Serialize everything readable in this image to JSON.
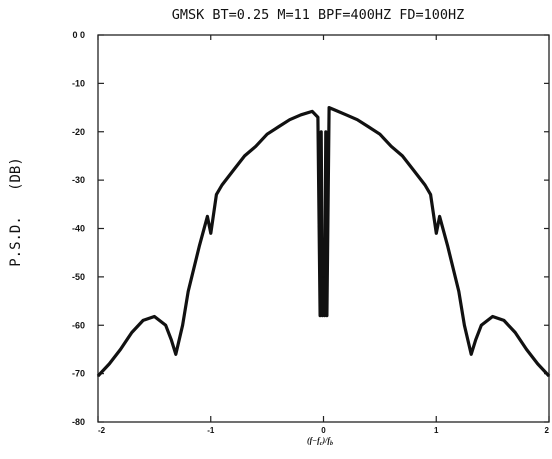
{
  "chart_data": {
    "type": "line",
    "title": "GMSK BT=0.25 M=11 BPF=400HZ FD=100HZ",
    "ylabel": "P.S.D.   (DB)",
    "xlabel": "(f−f_c)/f_b",
    "xlim": [
      -2,
      2
    ],
    "ylim": [
      -80,
      0
    ],
    "x_ticks": [
      "-2",
      "-1",
      "0",
      "1",
      "2"
    ],
    "y_ticks": [
      "0 0",
      "-10",
      "-20",
      "-30",
      "-40",
      "-50",
      "-60",
      "-70",
      "-80"
    ],
    "grid": false,
    "colors": {
      "line": "#111111",
      "axis": "#222222",
      "background": "#ffffff"
    },
    "series": [
      {
        "x": [
          -2.0,
          -1.9,
          -1.8,
          -1.7,
          -1.6,
          -1.5,
          -1.4,
          -1.35,
          -1.31,
          -1.25,
          -1.2,
          -1.1,
          -1.03,
          -1.0,
          -0.95,
          -0.9,
          -0.8,
          -0.7,
          -0.6,
          -0.5,
          -0.4,
          -0.3,
          -0.2,
          -0.1,
          -0.05,
          -0.03,
          -0.02,
          -0.01,
          0.0,
          0.01,
          0.02,
          0.03,
          0.05,
          0.1,
          0.2,
          0.3,
          0.4,
          0.5,
          0.6,
          0.7,
          0.8,
          0.9,
          0.95,
          1.0,
          1.03,
          1.1,
          1.2,
          1.25,
          1.31,
          1.35,
          1.4,
          1.5,
          1.6,
          1.7,
          1.8,
          1.9,
          2.0
        ],
        "y": [
          -70.5,
          -68.0,
          -65.0,
          -61.5,
          -59.0,
          -58.2,
          -60.0,
          -63.0,
          -66.0,
          -60.0,
          -53.0,
          -43.5,
          -37.5,
          -41.0,
          -33.0,
          -31.0,
          -28.0,
          -25.0,
          -23.0,
          -20.5,
          -19.0,
          -17.5,
          -16.5,
          -15.8,
          -17.0,
          -58.0,
          -20.0,
          -58.0,
          -50.0,
          -58.0,
          -20.0,
          -58.0,
          -15.0,
          -15.5,
          -16.5,
          -17.5,
          -19.0,
          -20.5,
          -23.0,
          -25.0,
          -28.0,
          -31.0,
          -33.0,
          -41.0,
          -37.5,
          -43.5,
          -53.0,
          -60.0,
          -66.0,
          -63.0,
          -60.0,
          -58.2,
          -59.0,
          -61.5,
          -65.0,
          -68.0,
          -70.5
        ]
      }
    ]
  }
}
